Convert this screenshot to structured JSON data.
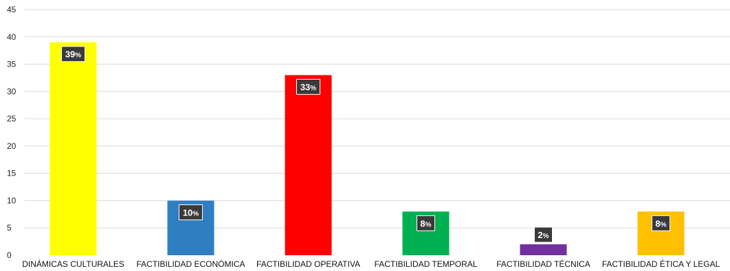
{
  "chart_data": {
    "type": "bar",
    "title": "",
    "xlabel": "",
    "ylabel": "",
    "ylim": [
      0,
      45
    ],
    "yticks": [
      0,
      5,
      10,
      15,
      20,
      25,
      30,
      35,
      40,
      45
    ],
    "grid": true,
    "legend": "none",
    "categories": [
      "DINÁMICAS CULTURALES",
      "FACTIBILIDAD ECONÓMICA",
      "FACTIBILIDAD OPERATIVA",
      "FACTIBILIDAD TEMPORAL",
      "FACTIBILIDAD TÉCNICA",
      "FACTIBILIDAD ÉTICA Y LEGAL"
    ],
    "values": [
      39,
      10,
      33,
      8,
      2,
      8
    ],
    "data_labels": [
      "39",
      "10",
      "33",
      "8",
      "2",
      "8"
    ],
    "data_label_suffix": "%",
    "colors": [
      "#FFFF00",
      "#2F7EC1",
      "#FF0000",
      "#00B050",
      "#7030A0",
      "#FFC000"
    ],
    "label_box_color": "#3A3A3A",
    "gridline_color": "#D9D9D9"
  }
}
